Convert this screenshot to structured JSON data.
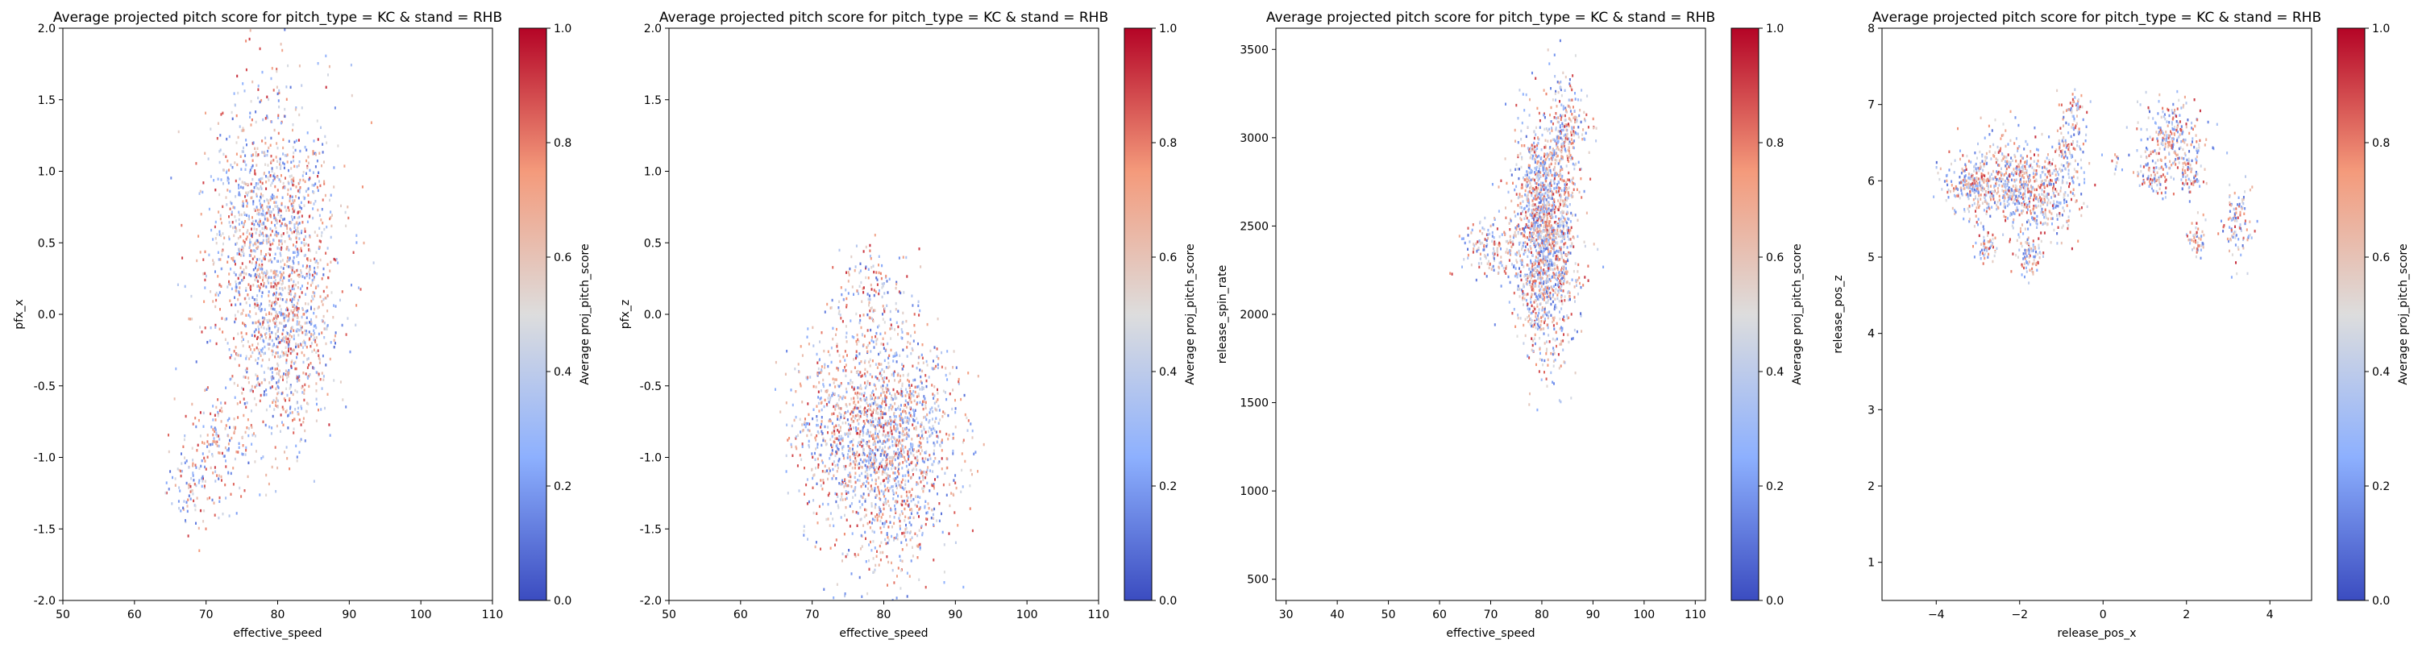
{
  "figure": {
    "panels": [
      {
        "title": "Average projected pitch score for pitch_type = KC & stand = RHB",
        "xlabel": "effective_speed",
        "ylabel": "pfx_x",
        "xticks": [
          "50",
          "60",
          "70",
          "80",
          "90",
          "100",
          "110"
        ],
        "yticks": [
          "-2.0",
          "-1.5",
          "-1.0",
          "-0.5",
          "0.0",
          "0.5",
          "1.0",
          "1.5",
          "2.0"
        ],
        "colorbar_label": "Average proj_pitch_score",
        "colorbar_ticks": [
          "0.0",
          "0.2",
          "0.4",
          "0.6",
          "0.8",
          "1.0"
        ]
      },
      {
        "title": "Average projected pitch score for pitch_type = KC & stand = RHB",
        "xlabel": "effective_speed",
        "ylabel": "pfx_z",
        "xticks": [
          "50",
          "60",
          "70",
          "80",
          "90",
          "100",
          "110"
        ],
        "yticks": [
          "-2.0",
          "-1.5",
          "-1.0",
          "-0.5",
          "0.0",
          "0.5",
          "1.0",
          "1.5",
          "2.0"
        ],
        "colorbar_label": "Average proj_pitch_score",
        "colorbar_ticks": [
          "0.0",
          "0.2",
          "0.4",
          "0.6",
          "0.8",
          "1.0"
        ]
      },
      {
        "title": "Average projected pitch score for pitch_type = KC & stand = RHB",
        "xlabel": "effective_speed",
        "ylabel": "release_spin_rate",
        "xticks": [
          "30",
          "40",
          "50",
          "60",
          "70",
          "80",
          "90",
          "100",
          "110"
        ],
        "yticks": [
          "500",
          "1000",
          "1500",
          "2000",
          "2500",
          "3000",
          "3500"
        ],
        "colorbar_label": "Average proj_pitch_score",
        "colorbar_ticks": [
          "0.0",
          "0.2",
          "0.4",
          "0.6",
          "0.8",
          "1.0"
        ]
      },
      {
        "title": "Average projected pitch score for pitch_type = KC & stand = RHB",
        "xlabel": "release_pos_x",
        "ylabel": "release_pos_z",
        "xticks": [
          "−4",
          "−2",
          "0",
          "2",
          "4"
        ],
        "yticks": [
          "1",
          "2",
          "3",
          "4",
          "5",
          "6",
          "7",
          "8"
        ],
        "colorbar_label": "Average proj_pitch_score",
        "colorbar_ticks": [
          "0.0",
          "0.2",
          "0.4",
          "0.6",
          "0.8",
          "1.0"
        ]
      }
    ]
  },
  "chart_data": [
    {
      "type": "scatter",
      "title": "Average projected pitch score for pitch_type = KC & stand = RHB",
      "xlabel": "effective_speed",
      "ylabel": "pfx_x",
      "xlim": [
        50,
        110
      ],
      "ylim": [
        -2.0,
        2.0
      ],
      "colorbar": {
        "label": "Average proj_pitch_score",
        "range": [
          0.0,
          1.0
        ],
        "colormap": "coolwarm"
      },
      "grid": false,
      "clusters": [
        {
          "x_center": 79,
          "y_center": 0.55,
          "x_spread": 4.5,
          "y_spread": 0.5,
          "point_count": 1400
        },
        {
          "x_center": 81,
          "y_center": -0.25,
          "x_spread": 3.5,
          "y_spread": 0.35,
          "point_count": 500
        },
        {
          "x_center": 72,
          "y_center": -0.9,
          "x_spread": 3.0,
          "y_spread": 0.2,
          "point_count": 150
        },
        {
          "x_center": 68,
          "y_center": -1.2,
          "x_spread": 1.8,
          "y_spread": 0.18,
          "point_count": 100
        }
      ]
    },
    {
      "type": "scatter",
      "title": "Average projected pitch score for pitch_type = KC & stand = RHB",
      "xlabel": "effective_speed",
      "ylabel": "pfx_z",
      "xlim": [
        50,
        110
      ],
      "ylim": [
        -2.0,
        2.0
      ],
      "colorbar": {
        "label": "Average proj_pitch_score",
        "range": [
          0.0,
          1.0
        ],
        "colormap": "coolwarm"
      },
      "grid": false,
      "clusters": [
        {
          "x_center": 80.5,
          "y_center": -0.9,
          "x_spread": 4.5,
          "y_spread": 0.4,
          "point_count": 1700
        },
        {
          "x_center": 72,
          "y_center": -0.7,
          "x_spread": 3.0,
          "y_spread": 0.35,
          "point_count": 250
        },
        {
          "x_center": 78,
          "y_center": 0.1,
          "x_spread": 2.5,
          "y_spread": 0.2,
          "point_count": 150
        }
      ]
    },
    {
      "type": "scatter",
      "title": "Average projected pitch score for pitch_type = KC & stand = RHB",
      "xlabel": "effective_speed",
      "ylabel": "release_spin_rate",
      "xlim": [
        28,
        112
      ],
      "ylim": [
        380,
        3620
      ],
      "colorbar": {
        "label": "Average proj_pitch_score",
        "range": [
          0.0,
          1.0
        ],
        "colormap": "coolwarm"
      },
      "grid": false,
      "clusters": [
        {
          "x_center": 80.5,
          "y_center": 2450,
          "x_spread": 3.0,
          "y_spread": 320,
          "point_count": 1700
        },
        {
          "x_center": 70,
          "y_center": 2380,
          "x_spread": 2.5,
          "y_spread": 90,
          "point_count": 150
        },
        {
          "x_center": 85,
          "y_center": 3050,
          "x_spread": 1.8,
          "y_spread": 150,
          "point_count": 200
        }
      ]
    },
    {
      "type": "scatter",
      "title": "Average projected pitch score for pitch_type = KC & stand = RHB",
      "xlabel": "release_pos_x",
      "ylabel": "release_pos_z",
      "xlim": [
        -5.3,
        5.0
      ],
      "ylim": [
        0.5,
        8.0
      ],
      "colorbar": {
        "label": "Average proj_pitch_score",
        "range": [
          0.0,
          1.0
        ],
        "colormap": "coolwarm"
      },
      "grid": false,
      "clusters": [
        {
          "x_center": -3.2,
          "y_center": 5.95,
          "x_spread": 0.3,
          "y_spread": 0.18,
          "point_count": 200
        },
        {
          "x_center": -2.4,
          "y_center": 6.0,
          "x_spread": 0.45,
          "y_spread": 0.3,
          "point_count": 350
        },
        {
          "x_center": -1.5,
          "y_center": 5.9,
          "x_spread": 0.45,
          "y_spread": 0.3,
          "point_count": 400
        },
        {
          "x_center": -1.8,
          "y_center": 5.05,
          "x_spread": 0.15,
          "y_spread": 0.12,
          "point_count": 80
        },
        {
          "x_center": -2.8,
          "y_center": 5.15,
          "x_spread": 0.12,
          "y_spread": 0.1,
          "point_count": 50
        },
        {
          "x_center": -0.8,
          "y_center": 6.5,
          "x_spread": 0.2,
          "y_spread": 0.2,
          "point_count": 80
        },
        {
          "x_center": -0.7,
          "y_center": 7.0,
          "x_spread": 0.15,
          "y_spread": 0.1,
          "point_count": 40
        },
        {
          "x_center": 1.6,
          "y_center": 6.55,
          "x_spread": 0.45,
          "y_spread": 0.25,
          "point_count": 250
        },
        {
          "x_center": 1.2,
          "y_center": 6.05,
          "x_spread": 0.2,
          "y_spread": 0.1,
          "point_count": 60
        },
        {
          "x_center": 2.1,
          "y_center": 6.1,
          "x_spread": 0.15,
          "y_spread": 0.15,
          "point_count": 60
        },
        {
          "x_center": 2.25,
          "y_center": 5.25,
          "x_spread": 0.12,
          "y_spread": 0.12,
          "point_count": 50
        },
        {
          "x_center": 3.2,
          "y_center": 5.5,
          "x_spread": 0.18,
          "y_spread": 0.25,
          "point_count": 100
        },
        {
          "x_center": 0.3,
          "y_center": 6.25,
          "x_spread": 0.1,
          "y_spread": 0.08,
          "point_count": 10
        }
      ]
    }
  ]
}
